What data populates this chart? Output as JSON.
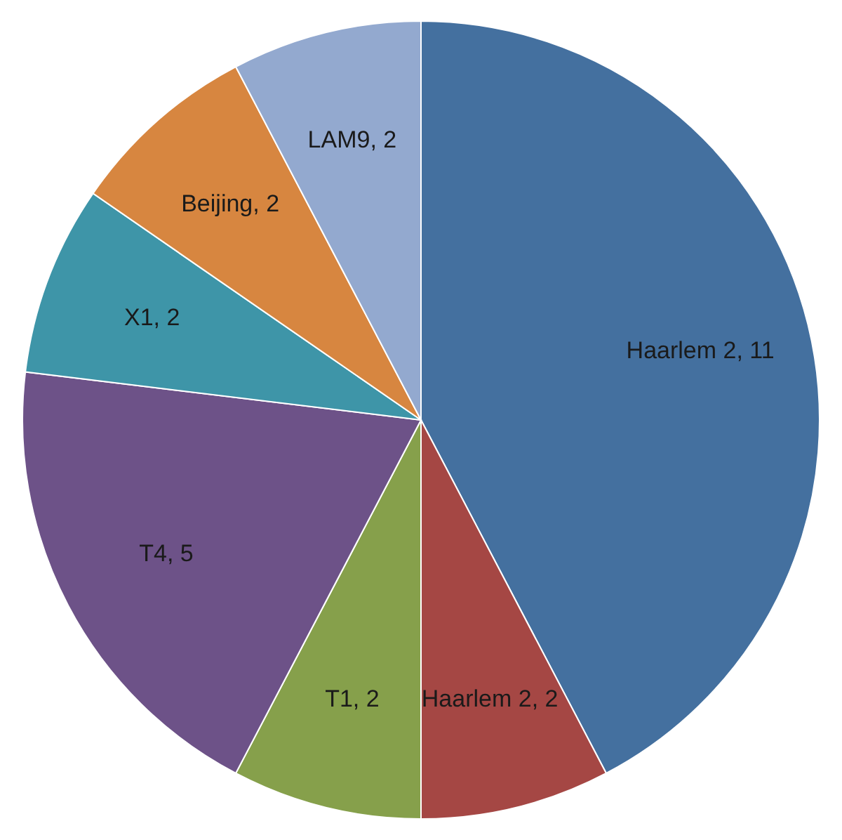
{
  "chart_data": {
    "type": "pie",
    "categories": [
      "Haarlem 2, 11",
      "Haarlem 2, 2",
      "T1, 2",
      "T4, 5",
      "X1, 2",
      "Beijing, 2",
      "LAM9, 2"
    ],
    "values": [
      11,
      2,
      2,
      5,
      2,
      2,
      2
    ],
    "colors": [
      "#44709f",
      "#a54744",
      "#86a04b",
      "#6d5288",
      "#3e95a8",
      "#d78640",
      "#93a9cf"
    ]
  }
}
